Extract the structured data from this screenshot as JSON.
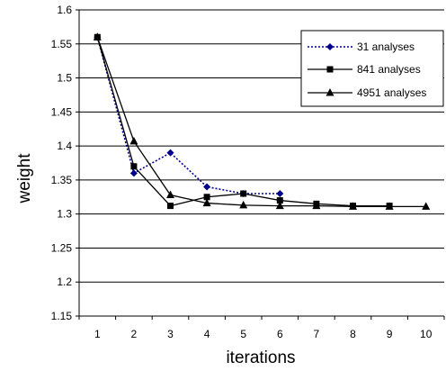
{
  "chart_data": {
    "type": "line",
    "xlabel": "iterations",
    "ylabel": "weight",
    "x": [
      1,
      2,
      3,
      4,
      5,
      6,
      7,
      8,
      9,
      10
    ],
    "xlim": [
      0.5,
      10.5
    ],
    "ylim": [
      1.15,
      1.6
    ],
    "yticks": [
      "1.15",
      "1.2",
      "1.25",
      "1.3",
      "1.35",
      "1.4",
      "1.45",
      "1.5",
      "1.55",
      "1.6"
    ],
    "xticks": [
      "1",
      "2",
      "3",
      "4",
      "5",
      "6",
      "7",
      "8",
      "9",
      "10"
    ],
    "grid": "horizontal",
    "legend_position": "top-right",
    "series": [
      {
        "name": "31 analyses",
        "x": [
          1,
          2,
          3,
          4,
          5,
          6
        ],
        "values": [
          1.56,
          1.36,
          1.39,
          1.34,
          1.33,
          1.33
        ],
        "color": "#00008b",
        "dash": "dotted",
        "marker": "diamond"
      },
      {
        "name": "841 analyses",
        "x": [
          1,
          2,
          3,
          4,
          5,
          6,
          7,
          8,
          9
        ],
        "values": [
          1.56,
          1.37,
          1.312,
          1.325,
          1.33,
          1.32,
          1.315,
          1.312,
          1.312
        ],
        "color": "#000000",
        "dash": "solid",
        "marker": "square"
      },
      {
        "name": "4951 analyses",
        "x": [
          1,
          2,
          3,
          4,
          5,
          6,
          7,
          8,
          9,
          10
        ],
        "values": [
          1.56,
          1.407,
          1.328,
          1.316,
          1.313,
          1.312,
          1.312,
          1.311,
          1.311,
          1.311
        ],
        "color": "#000000",
        "dash": "solid",
        "marker": "triangle"
      }
    ]
  }
}
